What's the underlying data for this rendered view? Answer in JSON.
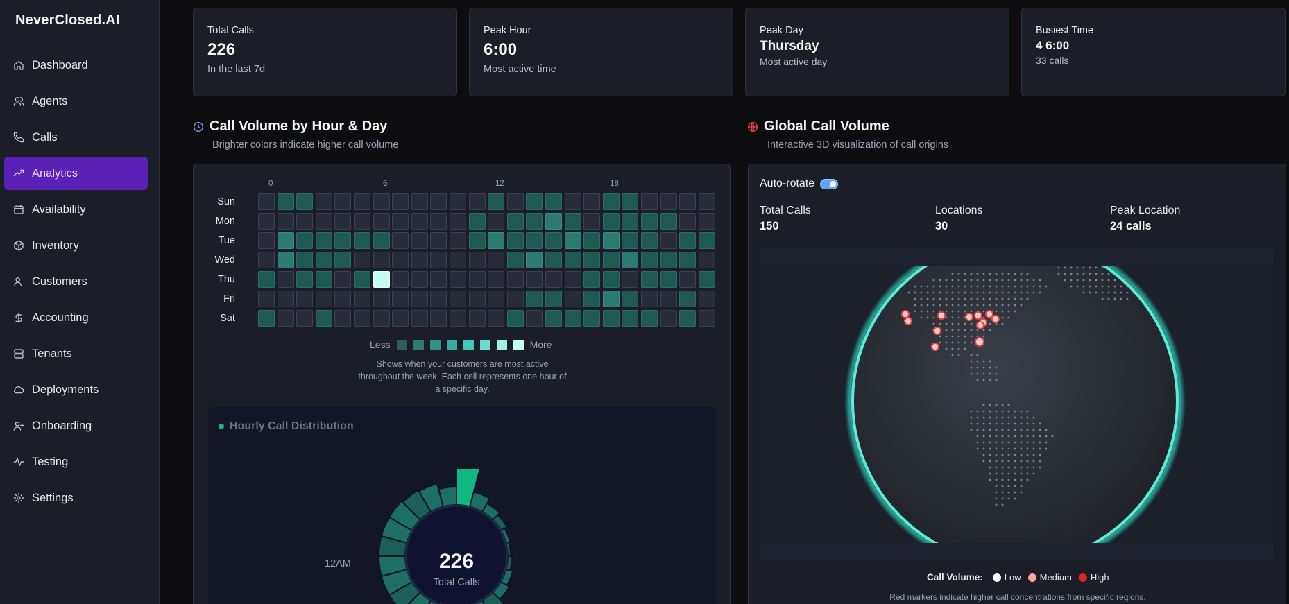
{
  "brand": "NeverClosed.AI",
  "nav": [
    {
      "label": "Dashboard",
      "icon": "home-icon"
    },
    {
      "label": "Agents",
      "icon": "users-icon"
    },
    {
      "label": "Calls",
      "icon": "phone-icon"
    },
    {
      "label": "Analytics",
      "icon": "trending-up-icon",
      "active": true
    },
    {
      "label": "Availability",
      "icon": "calendar-icon"
    },
    {
      "label": "Inventory",
      "icon": "package-icon"
    },
    {
      "label": "Customers",
      "icon": "user-round-icon"
    },
    {
      "label": "Accounting",
      "icon": "dollar-icon"
    },
    {
      "label": "Tenants",
      "icon": "server-icon"
    },
    {
      "label": "Deployments",
      "icon": "cloud-icon"
    },
    {
      "label": "Onboarding",
      "icon": "user-plus-icon"
    },
    {
      "label": "Testing",
      "icon": "activity-icon"
    },
    {
      "label": "Settings",
      "icon": "gear-icon"
    }
  ],
  "stats": [
    {
      "title": "Total Calls",
      "value": "226",
      "sub": "In the last 7d"
    },
    {
      "title": "Peak Hour",
      "value": "6:00",
      "sub": "Most active time"
    },
    {
      "title": "Peak Day",
      "value": "Thursday",
      "sub": "Most active day"
    },
    {
      "title": "Busiest Time",
      "value": "4 6:00",
      "sub": "33 calls"
    }
  ],
  "heatmap": {
    "title": "Call Volume by Hour & Day",
    "subtitle": "Brighter colors indicate higher call volume",
    "hour_labels": [
      "0",
      "6",
      "12",
      "18"
    ],
    "days": [
      "Sun",
      "Mon",
      "Tue",
      "Wed",
      "Thu",
      "Fri",
      "Sat"
    ],
    "levels": [
      [
        0,
        1,
        1,
        0,
        0,
        0,
        0,
        0,
        0,
        0,
        0,
        0,
        1,
        0,
        1,
        1,
        0,
        0,
        1,
        1,
        0,
        0,
        0,
        0
      ],
      [
        0,
        0,
        0,
        0,
        0,
        0,
        0,
        0,
        0,
        0,
        0,
        1,
        0,
        1,
        1,
        2,
        1,
        0,
        1,
        1,
        1,
        1,
        0,
        0
      ],
      [
        0,
        2,
        1,
        1,
        1,
        1,
        1,
        0,
        0,
        0,
        0,
        1,
        2,
        1,
        1,
        1,
        2,
        1,
        2,
        1,
        1,
        0,
        1,
        1
      ],
      [
        0,
        2,
        1,
        1,
        1,
        0,
        0,
        0,
        0,
        0,
        0,
        0,
        0,
        1,
        2,
        1,
        1,
        1,
        1,
        2,
        1,
        1,
        1,
        0
      ],
      [
        1,
        0,
        1,
        1,
        0,
        1,
        7,
        0,
        0,
        0,
        0,
        0,
        0,
        0,
        0,
        0,
        0,
        1,
        1,
        0,
        1,
        1,
        0,
        1
      ],
      [
        0,
        0,
        0,
        0,
        0,
        0,
        0,
        0,
        0,
        0,
        0,
        0,
        0,
        0,
        1,
        1,
        0,
        1,
        2,
        1,
        0,
        0,
        1,
        0
      ],
      [
        1,
        0,
        0,
        1,
        0,
        0,
        0,
        0,
        0,
        0,
        0,
        0,
        0,
        1,
        0,
        1,
        1,
        1,
        1,
        1,
        1,
        0,
        1,
        0
      ]
    ],
    "legend_less": "Less",
    "legend_more": "More",
    "legend_colors": [
      "#2c5f5a",
      "#2f7a72",
      "#32928a",
      "#38aca1",
      "#47c6b9",
      "#6edccf",
      "#a0eee4",
      "#c6fbf2"
    ],
    "note": "Shows when your customers are most active throughout the week. Each cell represents one hour of a specific day."
  },
  "hourly": {
    "title": "Hourly Call Distribution",
    "center_value": "226",
    "center_label": "Total Calls",
    "label_12am": "12AM"
  },
  "globe": {
    "title": "Global Call Volume",
    "subtitle": "Interactive 3D visualization of call origins",
    "auto_rotate": "Auto-rotate",
    "stats": [
      {
        "label": "Total Calls",
        "value": "150"
      },
      {
        "label": "Locations",
        "value": "30"
      },
      {
        "label": "Peak Location",
        "value": "24 calls"
      }
    ],
    "legend_title": "Call Volume:",
    "legend": [
      {
        "label": "Low",
        "color": "#ffffff"
      },
      {
        "label": "Medium",
        "color": "#fca5a5"
      },
      {
        "label": "High",
        "color": "#dc2626"
      }
    ],
    "note": "Red markers indicate higher call concentrations from specific regions."
  },
  "colors": {
    "accent": "#5b21b6",
    "cell_empty": "#272c38",
    "cell_low": "#1f5a52",
    "cell_mid": "#2b7a73",
    "cell_peak": "#c6fbf2",
    "globe_ring": "#2dd4bf"
  }
}
